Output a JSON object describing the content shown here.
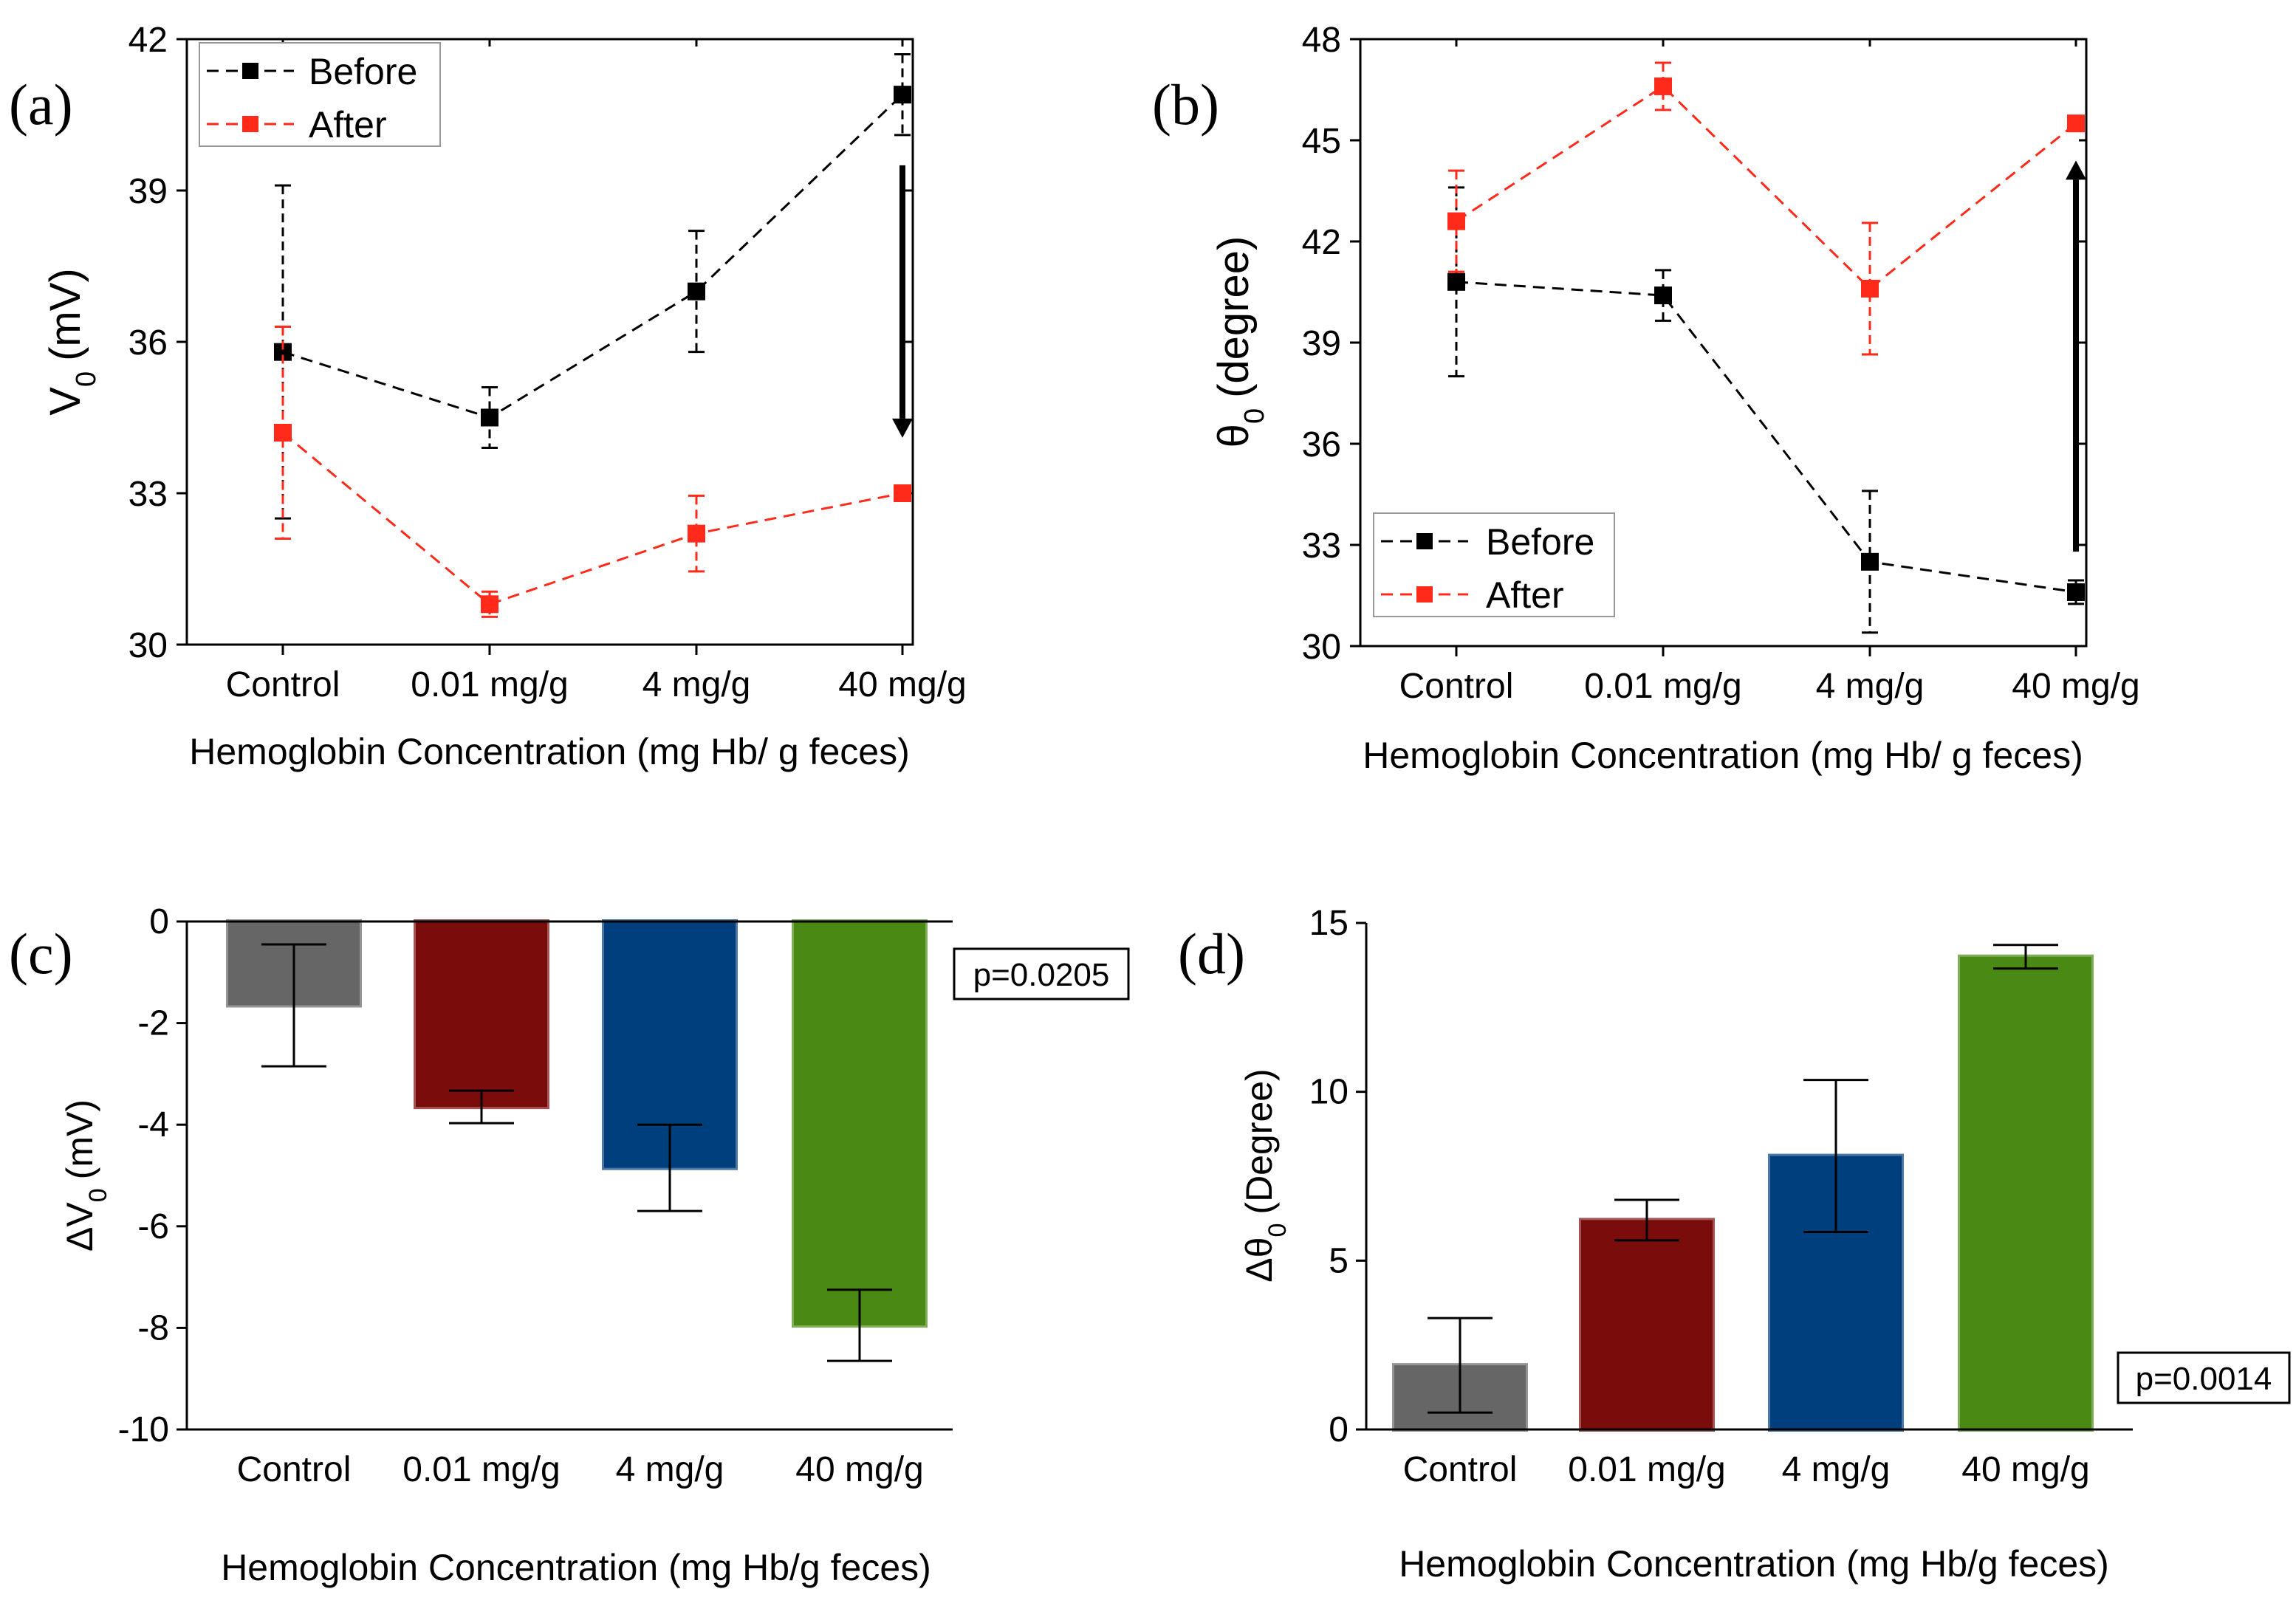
{
  "chart_data": [
    {
      "id": "a",
      "panel_label": "(a)",
      "type": "line",
      "title": "",
      "xlabel": "Hemoglobin Concentration (mg Hb/ g feces)",
      "ylabel": "V",
      "ylabel_sub": "0",
      "ylabel_unit": "(mV)",
      "categories": [
        "Control",
        "0.01 mg/g",
        "4 mg/g",
        "40 mg/g"
      ],
      "ylim": [
        30,
        42
      ],
      "yticks": [
        30,
        33,
        36,
        39,
        42
      ],
      "legend_position": "top-left",
      "series": [
        {
          "name": "Before",
          "color": "#000000",
          "values": [
            35.8,
            34.5,
            37.0,
            40.9
          ],
          "errors": [
            3.3,
            0.6,
            1.2,
            0.8
          ]
        },
        {
          "name": "After",
          "color": "#ff2a1a",
          "values": [
            34.2,
            30.8,
            32.2,
            33.0
          ],
          "errors": [
            2.1,
            0.25,
            0.75,
            0.1
          ]
        }
      ],
      "arrow": {
        "category": "40 mg/g",
        "from": 39.5,
        "to": 34.1
      }
    },
    {
      "id": "b",
      "panel_label": "(b)",
      "type": "line",
      "title": "",
      "xlabel": "Hemoglobin Concentration (mg Hb/ g feces)",
      "ylabel": "θ",
      "ylabel_sub": "0",
      "ylabel_unit": "(degree)",
      "categories": [
        "Control",
        "0.01 mg/g",
        "4 mg/g",
        "40 mg/g"
      ],
      "ylim": [
        30,
        48
      ],
      "yticks": [
        30,
        33,
        36,
        39,
        42,
        45,
        48
      ],
      "legend_position": "bottom-left",
      "series": [
        {
          "name": "Before",
          "color": "#000000",
          "values": [
            40.8,
            40.4,
            32.5,
            31.6
          ],
          "errors": [
            2.8,
            0.75,
            2.1,
            0.35
          ]
        },
        {
          "name": "After",
          "color": "#ff2a1a",
          "values": [
            42.6,
            46.6,
            40.6,
            45.5
          ],
          "errors": [
            1.5,
            0.7,
            1.95,
            0.1
          ]
        }
      ],
      "arrow": {
        "category": "40 mg/g",
        "from": 32.8,
        "to": 44.4
      }
    },
    {
      "id": "c",
      "panel_label": "(c)",
      "type": "bar",
      "title": "",
      "xlabel": "Hemoglobin Concentration (mg Hb/g feces)",
      "ylabel": "ΔV",
      "ylabel_sub": "0",
      "ylabel_unit": "(mV)",
      "categories": [
        "Control",
        "0.01 mg/g",
        "4 mg/g",
        "40 mg/g"
      ],
      "values": [
        -1.65,
        -3.65,
        -4.85,
        -7.95
      ],
      "errors": [
        1.2,
        0.32,
        0.85,
        0.7
      ],
      "colors": [
        "#666666",
        "#7b0c0c",
        "#003f7d",
        "#4a8a14"
      ],
      "ylim": [
        -10,
        0
      ],
      "yticks": [
        0,
        -2,
        -4,
        -6,
        -8,
        -10
      ],
      "annotation": "p=0.0205"
    },
    {
      "id": "d",
      "panel_label": "(d)",
      "type": "bar",
      "title": "",
      "xlabel": "Hemoglobin Concentration (mg Hb/g feces)",
      "ylabel": "Δθ",
      "ylabel_sub": "0",
      "ylabel_unit": "(Degree)",
      "categories": [
        "Control",
        "0.01 mg/g",
        "4 mg/g",
        "40 mg/g"
      ],
      "values": [
        1.9,
        6.2,
        8.1,
        14.0
      ],
      "errors": [
        1.4,
        0.6,
        2.25,
        0.35
      ],
      "colors": [
        "#666666",
        "#7b0c0c",
        "#003f7d",
        "#4a8a14"
      ],
      "ylim": [
        0,
        15
      ],
      "yticks": [
        0,
        5,
        10,
        15
      ],
      "annotation": "p=0.0014"
    }
  ]
}
